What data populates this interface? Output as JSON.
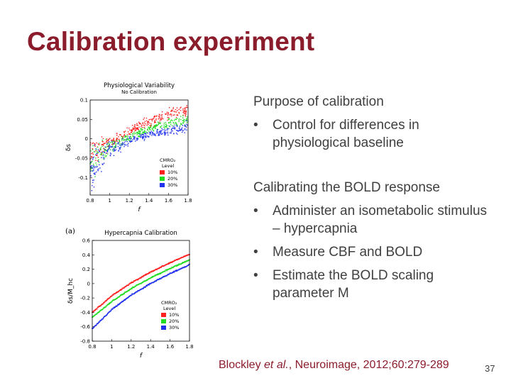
{
  "slide": {
    "title": "Calibration experiment",
    "heading1": "Purpose of calibration",
    "bullets1": [
      "Control for differences in physiological baseline"
    ],
    "heading2": "Calibrating the BOLD response",
    "bullets2": [
      "Administer an isometabolic stimulus – hypercapnia",
      "Measure CBF and BOLD",
      "Estimate the BOLD scaling parameter M"
    ],
    "citation": {
      "author": "Blockley ",
      "etal": "et al.",
      "rest": ", Neuroimage, 2012;60:279-289"
    },
    "page_number": "37",
    "bullet_char": "•"
  },
  "colors": {
    "title": "#8b1c2b",
    "text": "#404040",
    "red": "#ff2020",
    "green": "#22dd22",
    "blue": "#2233ee"
  },
  "chart_data": [
    {
      "type": "scatter",
      "title": "Physiological Variability",
      "subtitle": "No Calibration",
      "xlabel": "f",
      "ylabel": "δs",
      "xlim": [
        0.8,
        1.8
      ],
      "ylim": [
        -0.145,
        0.1
      ],
      "xticks": [
        "0.8",
        "1",
        "1.2",
        "1.4",
        "1.6",
        "1.8"
      ],
      "yticks": [
        "0.1",
        "0.05",
        "0",
        "-0.05",
        "-0.1"
      ],
      "legend": {
        "title": [
          "CMRO₂",
          "Level"
        ],
        "position": "center-right"
      },
      "series": [
        {
          "name": "10%",
          "color": "#ff2020",
          "points": [
            [
              0.8,
              -0.03
            ],
            [
              1.0,
              -0.01
            ],
            [
              1.2,
              0.02
            ],
            [
              1.4,
              0.045
            ],
            [
              1.6,
              0.065
            ],
            [
              1.8,
              0.075
            ]
          ],
          "spread": [
            0.06,
            0.02,
            0.015,
            0.02,
            0.02,
            0.02
          ]
        },
        {
          "name": "20%",
          "color": "#22dd22",
          "points": [
            [
              0.8,
              -0.06
            ],
            [
              1.0,
              -0.02
            ],
            [
              1.2,
              0.005
            ],
            [
              1.4,
              0.025
            ],
            [
              1.6,
              0.04
            ],
            [
              1.8,
              0.05
            ]
          ],
          "spread": [
            0.07,
            0.025,
            0.015,
            0.015,
            0.018,
            0.02
          ]
        },
        {
          "name": "30%",
          "color": "#2233ee",
          "points": [
            [
              0.8,
              -0.09
            ],
            [
              1.0,
              -0.03
            ],
            [
              1.2,
              -0.005
            ],
            [
              1.4,
              0.01
            ],
            [
              1.6,
              0.02
            ],
            [
              1.8,
              0.03
            ]
          ],
          "spread": [
            0.08,
            0.03,
            0.015,
            0.012,
            0.015,
            0.02
          ]
        }
      ]
    },
    {
      "type": "scatter",
      "panel_label": "(a)",
      "title": "Hypercapnia Calibration",
      "xlabel": "f",
      "ylabel": "δs/M_hc",
      "xlim": [
        0.8,
        1.8
      ],
      "ylim": [
        -0.8,
        0.6
      ],
      "xticks": [
        "0.8",
        "1",
        "1.2",
        "1.4",
        "1.6",
        "1.8"
      ],
      "yticks": [
        "0.6",
        "0.4",
        "0.2",
        "0",
        "-0.2",
        "-0.4",
        "-0.6",
        "-0.8"
      ],
      "legend": {
        "title": [
          "CMRO₂",
          "Level"
        ],
        "position": "lower-right"
      },
      "series": [
        {
          "name": "10%",
          "color": "#ff2020",
          "points": [
            [
              0.8,
              -0.4
            ],
            [
              1.0,
              -0.17
            ],
            [
              1.2,
              0.01
            ],
            [
              1.4,
              0.16
            ],
            [
              1.6,
              0.29
            ],
            [
              1.8,
              0.41
            ]
          ]
        },
        {
          "name": "20%",
          "color": "#22dd22",
          "points": [
            [
              0.8,
              -0.47
            ],
            [
              1.0,
              -0.25
            ],
            [
              1.2,
              -0.07
            ],
            [
              1.4,
              0.08
            ],
            [
              1.6,
              0.21
            ],
            [
              1.8,
              0.33
            ]
          ]
        },
        {
          "name": "30%",
          "color": "#2233ee",
          "points": [
            [
              0.8,
              -0.63
            ],
            [
              1.0,
              -0.36
            ],
            [
              1.2,
              -0.16
            ],
            [
              1.4,
              0.0
            ],
            [
              1.6,
              0.14
            ],
            [
              1.8,
              0.26
            ]
          ]
        }
      ]
    }
  ]
}
